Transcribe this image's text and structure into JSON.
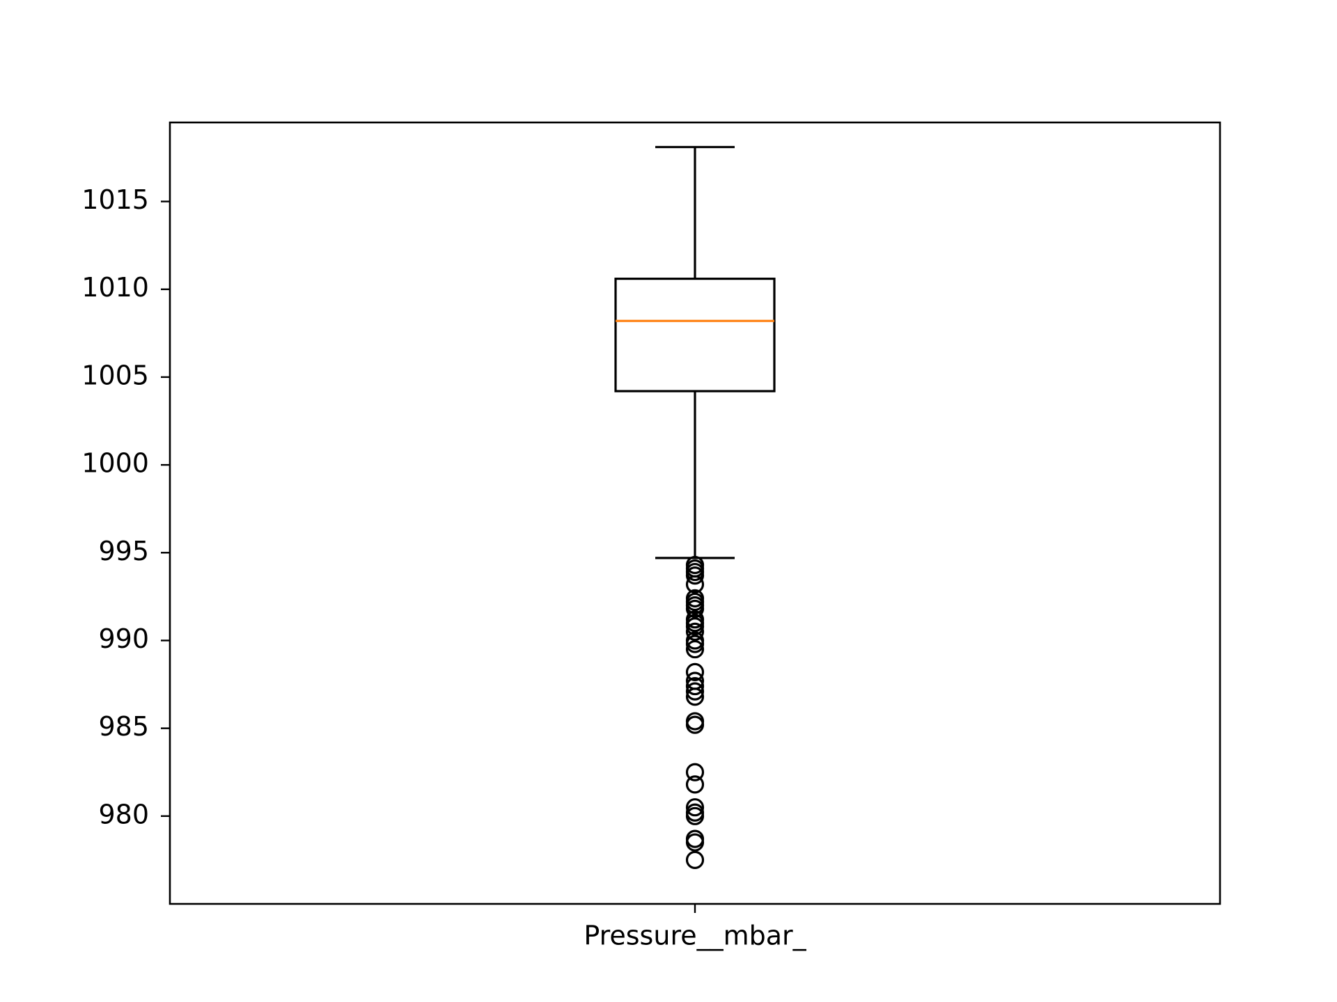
{
  "chart_data": {
    "type": "box",
    "title": "",
    "xlabel": "",
    "ylabel": "",
    "categories": [
      "Pressure__mbar_"
    ],
    "ylim": [
      975.0,
      1019.5
    ],
    "yticks": [
      980,
      985,
      990,
      995,
      1000,
      1005,
      1010,
      1015
    ],
    "yticklabels": [
      "980",
      "985",
      "990",
      "995",
      "1000",
      "1005",
      "1010",
      "1015"
    ],
    "grid": false,
    "series": [
      {
        "q1": 1004.2,
        "median": 1008.2,
        "q3": 1010.6,
        "whisker_low": 994.7,
        "whisker_high": 1018.1,
        "outliers": [
          994.3,
          994.1,
          993.9,
          993.7,
          993.2,
          992.4,
          992.2,
          992.0,
          991.8,
          991.2,
          991.0,
          990.8,
          990.5,
          990.0,
          989.8,
          989.5,
          988.2,
          987.7,
          987.4,
          987.1,
          986.8,
          985.4,
          985.2,
          982.5,
          981.8,
          980.5,
          980.2,
          980.0,
          978.7,
          978.5,
          977.5
        ]
      }
    ],
    "colors": {
      "box": "#000000",
      "median": "#ff7f0e",
      "outlier": "#000000"
    }
  }
}
